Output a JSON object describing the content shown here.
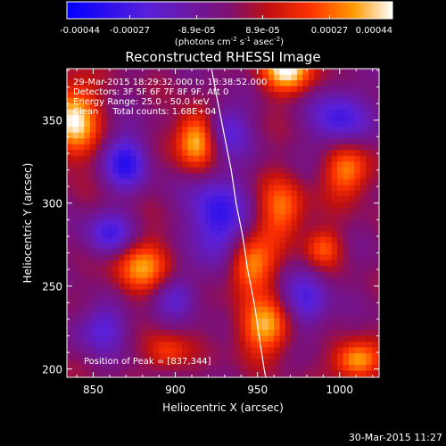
{
  "colorbar": {
    "tick_labels": [
      "-0.00044",
      "-0.00027",
      "-8.9e-05",
      "8.9e-05",
      "0.00027",
      "0.00044"
    ],
    "unit_label": "(photons cm",
    "unit_exp1": "-2",
    "unit_mid": " s",
    "unit_exp2": "-1",
    "unit_mid2": " asec",
    "unit_exp3": "-2",
    "unit_close": ")",
    "vmin": -0.00044,
    "vmax": 0.00044,
    "colormap": [
      {
        "stop": 0.0,
        "color": "#0000ff"
      },
      {
        "stop": 0.25,
        "color": "#5a20d8"
      },
      {
        "stop": 0.5,
        "color": "#7f1070"
      },
      {
        "stop": 0.62,
        "color": "#c01010"
      },
      {
        "stop": 0.75,
        "color": "#ff3300"
      },
      {
        "stop": 0.88,
        "color": "#ff9900"
      },
      {
        "stop": 1.0,
        "color": "#ffffff"
      }
    ]
  },
  "chart_data": {
    "type": "heatmap",
    "title": "Reconstructed RHESSI Image",
    "xlabel": "Heliocentric X (arcsec)",
    "ylabel": "Heliocentric Y (arcsec)",
    "xlim": [
      834,
      1024
    ],
    "ylim": [
      195,
      381
    ],
    "x_ticks": [
      850,
      900,
      950,
      1000
    ],
    "y_ticks": [
      200,
      250,
      300,
      350
    ],
    "x_tick_labels": [
      "850",
      "900",
      "950",
      "1000"
    ],
    "y_tick_labels": [
      "200",
      "250",
      "300",
      "350"
    ],
    "annotations": {
      "time_range": "29-Mar-2015 18:29:32.000 to 18:38:52.000",
      "detectors": "Detectors: 3F 5F 6F 7F 8F 9F, Att 0",
      "energy_range": "Energy Range: 25.0 - 50.0 keV",
      "clean_line": "Clean     Total counts: 1.68E+04",
      "peak_position": "Position of Peak = [837,344]"
    },
    "solar_limb": [
      [
        922,
        381
      ],
      [
        926,
        360
      ],
      [
        930,
        340
      ],
      [
        934,
        320
      ],
      [
        937,
        300
      ],
      [
        941,
        280
      ],
      [
        944,
        260
      ],
      [
        948,
        240
      ],
      [
        951,
        220
      ],
      [
        954,
        200
      ],
      [
        955,
        195
      ]
    ],
    "sources": [
      {
        "x": 838,
        "y": 350,
        "sx": 10,
        "sy": 16,
        "amp": 1.0
      },
      {
        "x": 913,
        "y": 338,
        "sx": 9,
        "sy": 12,
        "amp": 1.0
      },
      {
        "x": 968,
        "y": 380,
        "sx": 12,
        "sy": 10,
        "amp": 0.95
      },
      {
        "x": 880,
        "y": 262,
        "sx": 14,
        "sy": 12,
        "amp": 0.72
      },
      {
        "x": 1005,
        "y": 320,
        "sx": 10,
        "sy": 12,
        "amp": 0.75
      },
      {
        "x": 990,
        "y": 273,
        "sx": 8,
        "sy": 8,
        "amp": 0.55
      },
      {
        "x": 965,
        "y": 295,
        "sx": 10,
        "sy": 14,
        "amp": 0.65
      },
      {
        "x": 945,
        "y": 262,
        "sx": 10,
        "sy": 12,
        "amp": 0.78
      },
      {
        "x": 955,
        "y": 225,
        "sx": 12,
        "sy": 12,
        "amp": 0.8
      },
      {
        "x": 895,
        "y": 210,
        "sx": 9,
        "sy": 8,
        "amp": 0.5
      },
      {
        "x": 1010,
        "y": 205,
        "sx": 10,
        "sy": 8,
        "amp": 0.85
      },
      {
        "x": 870,
        "y": 325,
        "sx": 10,
        "sy": 12,
        "amp": -0.7
      },
      {
        "x": 925,
        "y": 290,
        "sx": 12,
        "sy": 20,
        "amp": -0.75
      },
      {
        "x": 860,
        "y": 280,
        "sx": 12,
        "sy": 10,
        "amp": -0.6
      },
      {
        "x": 930,
        "y": 345,
        "sx": 10,
        "sy": 12,
        "amp": -0.55
      },
      {
        "x": 1000,
        "y": 350,
        "sx": 12,
        "sy": 14,
        "amp": -0.65
      },
      {
        "x": 980,
        "y": 240,
        "sx": 10,
        "sy": 14,
        "amp": -0.55
      },
      {
        "x": 900,
        "y": 245,
        "sx": 10,
        "sy": 10,
        "amp": -0.45
      },
      {
        "x": 855,
        "y": 225,
        "sx": 12,
        "sy": 10,
        "amp": -0.5
      }
    ]
  },
  "footer": {
    "timestamp": "30-Mar-2015 11:27"
  }
}
